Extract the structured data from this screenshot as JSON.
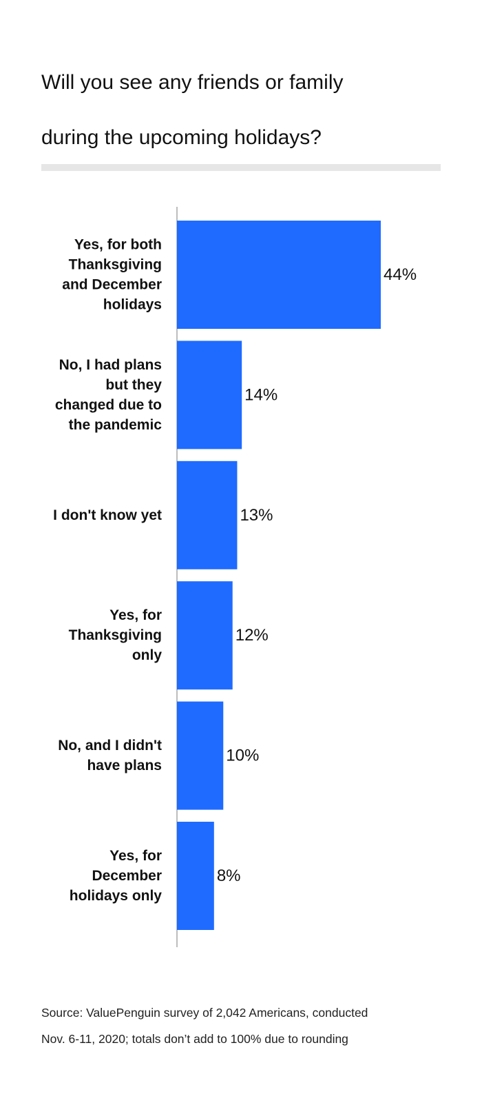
{
  "title": {
    "line1": "Will you see any friends or family",
    "line2": "during the upcoming holidays?"
  },
  "source": {
    "line1": "Source: ValuePenguin survey of 2,042 Americans, conducted",
    "line2": "Nov. 6-11, 2020; totals don’t add to 100% due to rounding"
  },
  "colors": {
    "bar": "#1f6bff",
    "rule": "#e6e6e6",
    "axis": "#bdbdbd"
  },
  "chart_data": {
    "type": "bar",
    "orientation": "horizontal",
    "categories": [
      [
        "Yes, for both",
        "Thanksgiving",
        "and December",
        "holidays"
      ],
      [
        "No, I had plans",
        "but they",
        "changed due to",
        "the pandemic"
      ],
      [
        "I don't know yet"
      ],
      [
        "Yes, for",
        "Thanksgiving",
        "only"
      ],
      [
        "No, and I didn't",
        "have plans"
      ],
      [
        "Yes, for",
        "December",
        "holidays only"
      ]
    ],
    "values": [
      44,
      14,
      13,
      12,
      10,
      8
    ],
    "value_labels": [
      "44%",
      "14%",
      "13%",
      "12%",
      "10%",
      "8%"
    ],
    "unit": "%",
    "xlim": [
      0,
      50
    ],
    "grid": false,
    "legend": "none"
  }
}
